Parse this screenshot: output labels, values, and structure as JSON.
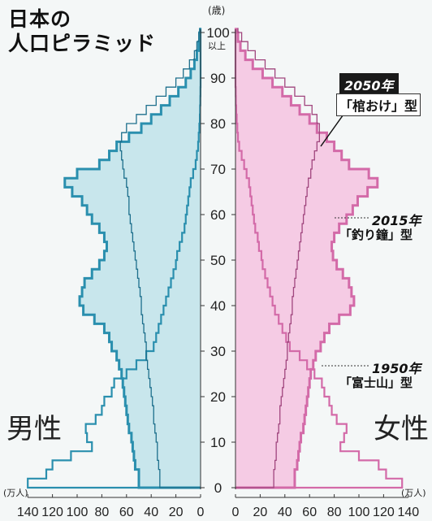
{
  "title": {
    "line1": "日本の",
    "line2": "人口ピラミッド"
  },
  "labels": {
    "male": "男性",
    "female": "女性",
    "unit_left": "(万人)",
    "unit_right": "(万人)",
    "age_unit": "(歳)",
    "over100": "以上"
  },
  "annotations": {
    "y2050_year": "2050年",
    "y2050_shape": "「棺おけ」型",
    "y2015_year": "2015年",
    "y2015_shape": "「釣り鐘」型",
    "y1950_year": "1950年",
    "y1950_shape": "「富士山」型"
  },
  "colors": {
    "male_fill": "#bfe3ea",
    "male_line": "#2a8fae",
    "male_line_dark": "#1d6f8c",
    "female_fill": "#f4c3e0",
    "female_line": "#d36aa8",
    "female_line_dark": "#a0467e",
    "axis": "#333333"
  },
  "chart_data": {
    "type": "population-pyramid",
    "age_axis": {
      "min": 0,
      "max": 100,
      "ticks": [
        0,
        10,
        20,
        30,
        40,
        50,
        60,
        70,
        80,
        90,
        100
      ]
    },
    "value_axis": {
      "min": 0,
      "max": 140,
      "ticks": [
        0,
        20,
        40,
        60,
        80,
        100,
        120,
        140
      ],
      "unit": "万人"
    },
    "ages": [
      0,
      2,
      4,
      6,
      8,
      10,
      12,
      14,
      16,
      18,
      20,
      22,
      24,
      26,
      28,
      30,
      32,
      34,
      36,
      38,
      40,
      42,
      44,
      46,
      48,
      50,
      52,
      54,
      56,
      58,
      60,
      62,
      64,
      66,
      68,
      70,
      72,
      74,
      76,
      78,
      80,
      82,
      84,
      86,
      88,
      90,
      92,
      94,
      96,
      98,
      100
    ],
    "series": [
      {
        "name": "1950年",
        "male": [
          140,
          125,
          120,
          105,
          88,
          92,
          93,
          85,
          80,
          78,
          72,
          70,
          60,
          52,
          44,
          38,
          36,
          34,
          32,
          30,
          28,
          26,
          24,
          22,
          20,
          19,
          17,
          15,
          13,
          12,
          11,
          10,
          9,
          8,
          6,
          4,
          3,
          2,
          1.5,
          1,
          0.6,
          0.4,
          0.2,
          0.1,
          0,
          0,
          0,
          0,
          0,
          0,
          0
        ],
        "female": [
          135,
          122,
          116,
          100,
          85,
          88,
          90,
          82,
          78,
          76,
          72,
          70,
          64,
          58,
          52,
          44,
          41,
          38,
          35,
          32,
          30,
          28,
          26,
          24,
          22,
          21,
          19,
          18,
          16,
          15,
          14,
          13,
          12,
          11,
          9,
          7,
          5,
          3,
          2,
          1.5,
          1,
          0.6,
          0.3,
          0.2,
          0,
          0,
          0,
          0,
          0,
          0,
          0
        ]
      },
      {
        "name": "2015年",
        "male": [
          50,
          50,
          53,
          54,
          55,
          56,
          58,
          59,
          60,
          61,
          62,
          63,
          64,
          66,
          68,
          72,
          74,
          78,
          86,
          95,
          98,
          96,
          94,
          88,
          82,
          78,
          76,
          78,
          82,
          88,
          92,
          96,
          104,
          110,
          100,
          82,
          74,
          68,
          58,
          48,
          40,
          32,
          25,
          18,
          12,
          8,
          5,
          3,
          1.5,
          0.8,
          0.3
        ],
        "female": [
          48,
          48,
          50,
          51,
          52,
          53,
          55,
          56,
          57,
          58,
          59,
          60,
          61,
          63,
          65,
          69,
          72,
          76,
          84,
          93,
          96,
          94,
          92,
          87,
          82,
          79,
          78,
          80,
          84,
          90,
          95,
          99,
          107,
          115,
          108,
          92,
          86,
          80,
          74,
          66,
          60,
          52,
          45,
          38,
          30,
          22,
          14,
          8,
          4,
          2,
          1
        ]
      },
      {
        "name": "2050年",
        "male": [
          33,
          33,
          34,
          35,
          35,
          36,
          37,
          38,
          38,
          39,
          40,
          41,
          42,
          43,
          44,
          44,
          45,
          46,
          47,
          48,
          48,
          49,
          50,
          51,
          52,
          53,
          54,
          55,
          56,
          57,
          58,
          58,
          59,
          60,
          62,
          63,
          64,
          65,
          64,
          60,
          52,
          44,
          36,
          28,
          20,
          14,
          9,
          5,
          3,
          1.5,
          0.5
        ],
        "female": [
          31,
          31,
          32,
          33,
          33,
          34,
          35,
          36,
          36,
          37,
          38,
          39,
          40,
          41,
          42,
          42,
          43,
          44,
          45,
          46,
          46,
          47,
          48,
          49,
          50,
          51,
          52,
          53,
          54,
          55,
          56,
          57,
          58,
          59,
          61,
          62,
          64,
          66,
          68,
          68,
          66,
          62,
          56,
          48,
          40,
          32,
          24,
          16,
          10,
          5,
          2
        ]
      }
    ],
    "title": "日本の人口ピラミッド",
    "xlabel": "万人",
    "ylabel": "歳"
  }
}
